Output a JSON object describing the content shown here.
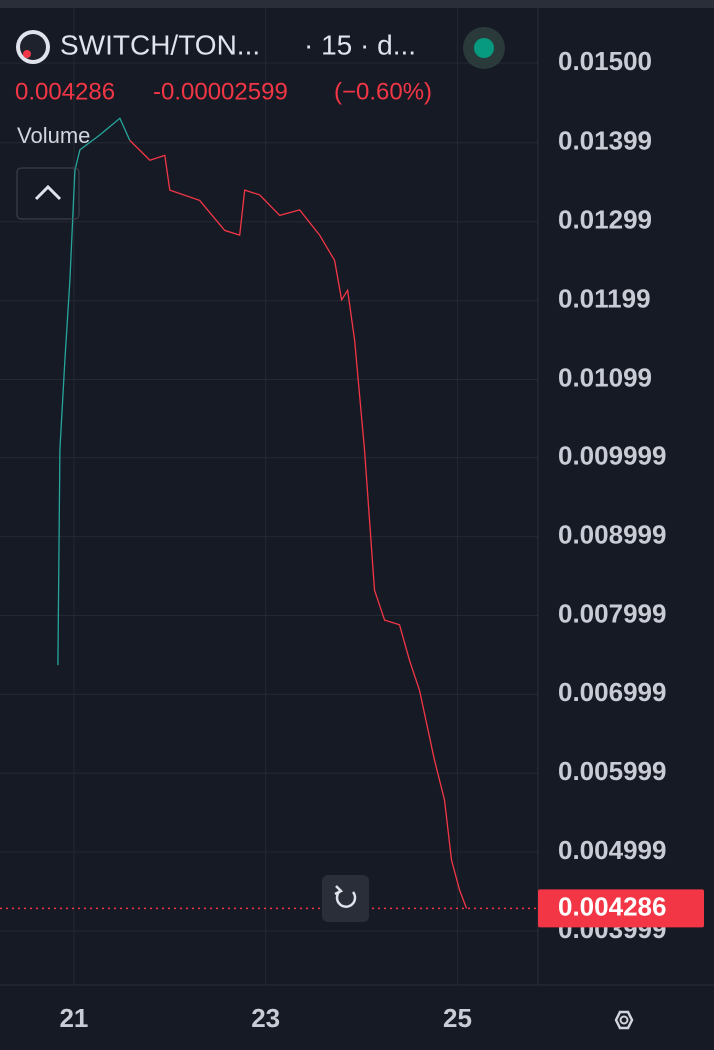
{
  "header": {
    "symbol": "SWITCH/TON...",
    "interval": "· 15 · d...",
    "price": "0.004286",
    "change": "-0.00002599",
    "change_pct": "(−0.60%)",
    "indicator": "Volume"
  },
  "chart_data": {
    "type": "line",
    "xlim": [
      20.229,
      25.84
    ],
    "xticks": [
      21,
      23,
      25
    ],
    "ylim": [
      0.003315,
      0.0158
    ],
    "yticks": [
      {
        "value": 0.015,
        "label": "0.01500"
      },
      {
        "value": 0.01399,
        "label": "0.01399"
      },
      {
        "value": 0.01299,
        "label": "0.01299"
      },
      {
        "value": 0.01199,
        "label": "0.01199"
      },
      {
        "value": 0.01099,
        "label": "0.01099"
      },
      {
        "value": 0.009999,
        "label": "0.009999"
      },
      {
        "value": 0.008999,
        "label": "0.008999"
      },
      {
        "value": 0.007999,
        "label": "0.007999"
      },
      {
        "value": 0.006999,
        "label": "0.006999"
      },
      {
        "value": 0.005999,
        "label": "0.005999"
      },
      {
        "value": 0.004999,
        "label": "0.004999"
      },
      {
        "value": 0.003999,
        "label": "0.003999"
      }
    ],
    "grid": true,
    "series": [
      {
        "color": "#26a69a",
        "x": [
          20.833,
          20.854,
          20.906,
          20.958,
          21.01,
          21.062,
          21.271,
          21.479,
          21.583
        ],
        "values": [
          0.00737,
          0.0101,
          0.01124,
          0.01225,
          0.01364,
          0.0139,
          0.01409,
          0.0143,
          0.01402
        ]
      },
      {
        "color": "#f23645",
        "x": [
          21.583,
          21.792,
          21.948,
          22.0,
          22.312,
          22.573,
          22.729,
          22.781,
          22.937,
          23.146,
          23.354,
          23.562,
          23.719,
          23.792,
          23.854,
          23.927,
          24.031,
          24.135,
          24.24,
          24.396,
          24.5,
          24.604,
          24.76,
          24.865,
          24.938,
          25.021,
          25.094
        ],
        "values": [
          0.01402,
          0.01377,
          0.01383,
          0.01339,
          0.01326,
          0.01288,
          0.01282,
          0.01339,
          0.01333,
          0.01307,
          0.01314,
          0.01282,
          0.0125,
          0.012,
          0.01212,
          0.01149,
          0.0101,
          0.00832,
          0.00794,
          0.00788,
          0.00743,
          0.00705,
          0.00617,
          0.00566,
          0.0049,
          0.00452,
          0.004286
        ]
      }
    ],
    "last_price": {
      "value": 0.004286,
      "label": "0.004286",
      "color": "#f23645"
    }
  }
}
